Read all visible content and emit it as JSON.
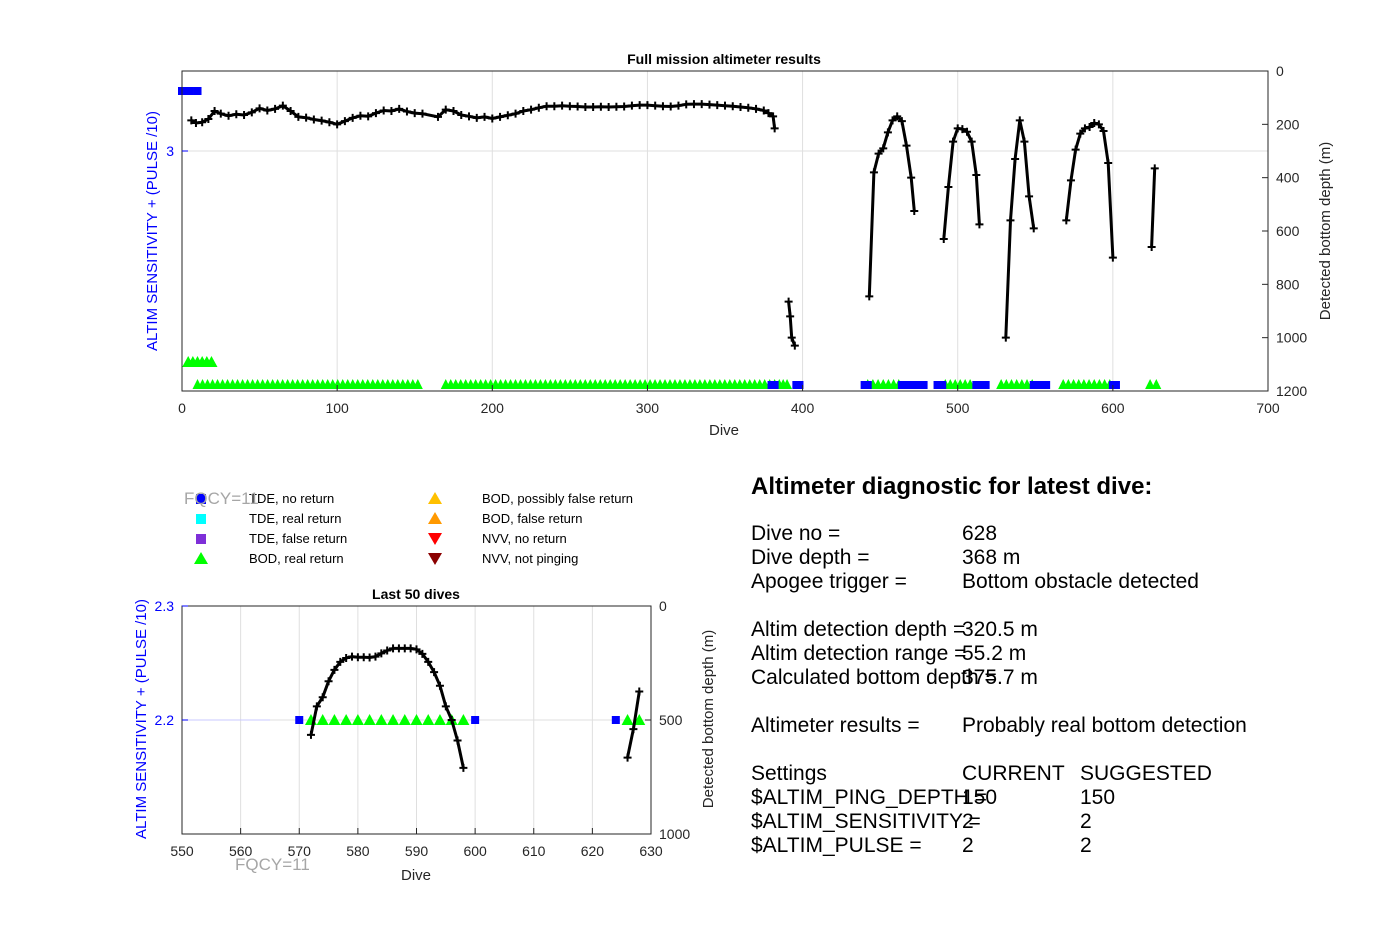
{
  "chart_data": [
    {
      "type": "line",
      "title": "Full mission altimeter results",
      "xlabel": "Dive",
      "ylabel_left": "ALTIM SENSITIVITY + (PULSE /10)",
      "ylabel_right": "Detected bottom depth (m)",
      "xlim": [
        0,
        700
      ],
      "xticks": [
        0,
        100,
        200,
        300,
        400,
        500,
        600,
        700
      ],
      "ylim_left": [
        1.8,
        3.4
      ],
      "yticks_left": [
        3
      ],
      "ylim_right": [
        0,
        1200
      ],
      "yticks_right": [
        0,
        200,
        400,
        600,
        800,
        1000,
        1200
      ],
      "grid": true,
      "depth_series": [
        [
          [
            6,
            185
          ],
          [
            9,
            195
          ],
          [
            13,
            192
          ],
          [
            17,
            180
          ],
          [
            21,
            150
          ],
          [
            25,
            160
          ],
          [
            30,
            168
          ],
          [
            35,
            162
          ],
          [
            40,
            165
          ],
          [
            45,
            155
          ],
          [
            50,
            140
          ],
          [
            55,
            148
          ],
          [
            60,
            142
          ],
          [
            65,
            130
          ],
          [
            70,
            150
          ],
          [
            75,
            172
          ],
          [
            80,
            175
          ],
          [
            85,
            182
          ],
          [
            90,
            186
          ],
          [
            95,
            192
          ],
          [
            100,
            200
          ],
          [
            105,
            188
          ],
          [
            110,
            176
          ],
          [
            115,
            168
          ],
          [
            120,
            170
          ],
          [
            125,
            158
          ],
          [
            130,
            148
          ],
          [
            135,
            150
          ],
          [
            140,
            142
          ],
          [
            145,
            152
          ],
          [
            150,
            158
          ],
          [
            155,
            160
          ],
          [
            165,
            172
          ],
          [
            170,
            145
          ],
          [
            175,
            150
          ],
          [
            180,
            165
          ],
          [
            185,
            170
          ],
          [
            190,
            176
          ],
          [
            195,
            172
          ],
          [
            200,
            178
          ],
          [
            205,
            172
          ],
          [
            210,
            166
          ],
          [
            215,
            160
          ],
          [
            220,
            150
          ],
          [
            225,
            145
          ],
          [
            230,
            138
          ],
          [
            235,
            132
          ],
          [
            240,
            132
          ],
          [
            245,
            130
          ],
          [
            250,
            132
          ],
          [
            255,
            133
          ],
          [
            260,
            135
          ],
          [
            265,
            135
          ],
          [
            270,
            134
          ],
          [
            275,
            135
          ],
          [
            280,
            134
          ],
          [
            285,
            133
          ],
          [
            290,
            130
          ],
          [
            295,
            128
          ],
          [
            300,
            128
          ],
          [
            305,
            130
          ],
          [
            310,
            132
          ],
          [
            315,
            133
          ],
          [
            320,
            130
          ],
          [
            325,
            125
          ],
          [
            330,
            124
          ],
          [
            335,
            124
          ],
          [
            340,
            126
          ],
          [
            345,
            128
          ],
          [
            350,
            130
          ],
          [
            355,
            132
          ],
          [
            360,
            135
          ],
          [
            365,
            138
          ],
          [
            370,
            142
          ],
          [
            375,
            148
          ],
          [
            378,
            158
          ],
          [
            381,
            170
          ],
          [
            382,
            215
          ]
        ],
        [
          [
            391,
            865
          ],
          [
            392,
            920
          ],
          [
            393,
            1000
          ],
          [
            395,
            1030
          ]
        ],
        [
          [
            443,
            845
          ],
          [
            446,
            380
          ],
          [
            449,
            310
          ],
          [
            452,
            290
          ],
          [
            455,
            230
          ],
          [
            458,
            185
          ],
          [
            461,
            170
          ],
          [
            464,
            188
          ],
          [
            467,
            280
          ],
          [
            470,
            400
          ],
          [
            472,
            525
          ]
        ],
        [
          [
            491,
            630
          ],
          [
            494,
            435
          ],
          [
            497,
            265
          ],
          [
            500,
            215
          ],
          [
            503,
            218
          ],
          [
            506,
            228
          ],
          [
            509,
            265
          ],
          [
            512,
            390
          ],
          [
            514,
            575
          ]
        ],
        [
          [
            531,
            1000
          ],
          [
            534,
            560
          ],
          [
            537,
            330
          ],
          [
            540,
            185
          ],
          [
            543,
            265
          ],
          [
            546,
            470
          ],
          [
            549,
            590
          ]
        ],
        [
          [
            570,
            560
          ],
          [
            573,
            410
          ],
          [
            576,
            295
          ],
          [
            579,
            235
          ],
          [
            582,
            215
          ],
          [
            585,
            210
          ],
          [
            588,
            195
          ],
          [
            591,
            200
          ],
          [
            594,
            225
          ],
          [
            597,
            345
          ],
          [
            600,
            700
          ]
        ],
        [
          [
            625,
            660
          ],
          [
            627,
            365
          ]
        ]
      ],
      "tde_no_return_markers": [
        [
          0,
          3.3
        ],
        [
          5,
          3.3
        ],
        [
          10,
          3.3
        ]
      ],
      "bod_real_return_ranges": [
        [
          10,
          152
        ],
        [
          170,
          382
        ],
        [
          385,
          390
        ],
        [
          442,
          462
        ],
        [
          492,
          508
        ],
        [
          528,
          548
        ],
        [
          568,
          598
        ],
        [
          624,
          628
        ]
      ],
      "tde_no_return_ranges": [
        [
          380,
          382
        ],
        [
          396,
          398
        ],
        [
          440,
          442
        ],
        [
          464,
          478
        ],
        [
          487,
          490
        ],
        [
          512,
          518
        ],
        [
          549,
          557
        ],
        [
          600,
          602
        ]
      ]
    },
    {
      "type": "line",
      "title": "Last 50 dives",
      "xlabel": "Dive",
      "ylabel_left": "ALTIM SENSITIVITY + (PULSE /10)",
      "ylabel_right": "Detected bottom depth (m)",
      "xlim": [
        550,
        630
      ],
      "xticks": [
        550,
        560,
        570,
        580,
        590,
        600,
        610,
        620,
        630
      ],
      "ylim_left": [
        2.1,
        2.3
      ],
      "yticks_left": [
        2.2,
        2.3
      ],
      "ylim_right": [
        0,
        1000
      ],
      "yticks_right": [
        0,
        500,
        1000
      ],
      "grid": true,
      "depth_series": [
        [
          [
            572,
            565
          ],
          [
            573,
            440
          ],
          [
            574,
            400
          ],
          [
            575,
            330
          ],
          [
            576,
            280
          ],
          [
            577,
            245
          ],
          [
            578,
            228
          ],
          [
            579,
            222
          ],
          [
            580,
            225
          ],
          [
            581,
            225
          ],
          [
            582,
            226
          ],
          [
            583,
            222
          ],
          [
            584,
            208
          ],
          [
            585,
            195
          ],
          [
            586,
            186
          ],
          [
            587,
            186
          ],
          [
            588,
            186
          ],
          [
            589,
            186
          ],
          [
            590,
            190
          ],
          [
            591,
            210
          ],
          [
            592,
            245
          ],
          [
            593,
            290
          ],
          [
            594,
            350
          ],
          [
            595,
            440
          ],
          [
            596,
            500
          ],
          [
            597,
            590
          ],
          [
            598,
            710
          ]
        ],
        [
          [
            626,
            665
          ],
          [
            627,
            540
          ],
          [
            628,
            375
          ]
        ]
      ],
      "tde_no_return_x": [
        570,
        600,
        624
      ],
      "bod_real_return_x": [
        572,
        574,
        576,
        578,
        580,
        582,
        584,
        586,
        588,
        590,
        592,
        594,
        596,
        598,
        626,
        628
      ],
      "ref_line_y": 2.2
    }
  ],
  "legend": [
    {
      "label": "TDE, no return",
      "marker": "square",
      "color": "#0000ff"
    },
    {
      "label": "TDE, real return",
      "marker": "square",
      "color": "#00ffff"
    },
    {
      "label": "TDE, false return",
      "marker": "square",
      "color": "#7e2fd8"
    },
    {
      "label": "BOD, real return",
      "marker": "triangle-up",
      "color": "#00ff00"
    },
    {
      "label": "BOD, possibly false return",
      "marker": "triangle-up",
      "color": "#ffc000"
    },
    {
      "label": "BOD, false return",
      "marker": "triangle-up",
      "color": "#ff9900"
    },
    {
      "label": "NVV, no return",
      "marker": "triangle-down",
      "color": "#ff0000"
    },
    {
      "label": "NVV, not pinging",
      "marker": "triangle-down",
      "color": "#8b0000"
    }
  ],
  "fqcy_labels": [
    "FQCY=11",
    "FQCY=11"
  ],
  "diagnostic": {
    "title": "Altimeter diagnostic for latest dive:",
    "rows": [
      {
        "label": "Dive no =",
        "value": "628"
      },
      {
        "label": "Dive depth =",
        "value": "368 m"
      },
      {
        "label": "Apogee trigger =",
        "value": "Bottom obstacle detected"
      },
      {
        "label": "Altim detection depth =",
        "value": "320.5 m"
      },
      {
        "label": "Altim detection range =",
        "value": "55.2 m"
      },
      {
        "label": "Calculated bottom depth =",
        "value": "375.7 m"
      },
      {
        "label": "Altimeter results =",
        "value": "Probably real bottom detection"
      }
    ],
    "settings_header": {
      "label": "Settings",
      "current": "CURRENT",
      "suggested": "SUGGESTED"
    },
    "settings": [
      {
        "label": "$ALTIM_PING_DEPTH =",
        "current": "150",
        "suggested": "150"
      },
      {
        "label": "$ALTIM_SENSITIVITY =",
        "current": "2",
        "suggested": "2"
      },
      {
        "label": "$ALTIM_PULSE =",
        "current": "2",
        "suggested": "2"
      }
    ]
  },
  "colors": {
    "axis_blue": "#0000ff",
    "line": "#000000",
    "bod_green": "#00ff00",
    "grid": "#dfdfdf",
    "fqcy_gray": "#a6a6a6"
  }
}
